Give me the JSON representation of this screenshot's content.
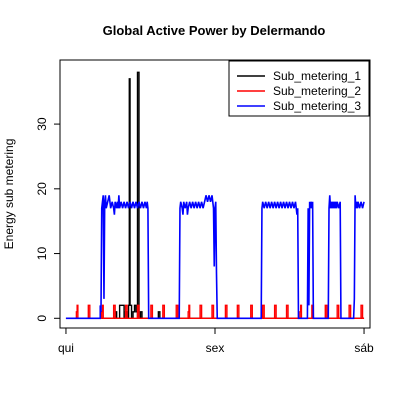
{
  "chart_data": {
    "type": "line",
    "title": "Global Active Power by Delermando",
    "xlabel": "",
    "ylabel": "Energy sub metering",
    "x_ticks": [
      {
        "label": "qui",
        "value": 0
      },
      {
        "label": "sex",
        "value": 1
      },
      {
        "label": "sáb",
        "value": 2
      }
    ],
    "xlim": [
      -0.04,
      2.04
    ],
    "ylim": [
      -1.5,
      39.9
    ],
    "y_ticks": [
      0,
      10,
      20,
      30
    ],
    "grid": false,
    "legend_position": "top-right",
    "series": [
      {
        "name": "Sub_metering_1",
        "color": "#000000",
        "points": [
          [
            0,
            0
          ],
          [
            0.33,
            0
          ],
          [
            0.33,
            1
          ],
          [
            0.34,
            1
          ],
          [
            0.34,
            0
          ],
          [
            0.36,
            0
          ],
          [
            0.36,
            2
          ],
          [
            0.39,
            2
          ],
          [
            0.39,
            0
          ],
          [
            0.4,
            0
          ],
          [
            0.4,
            1
          ],
          [
            0.41,
            1
          ],
          [
            0.41,
            0
          ],
          [
            0.42,
            0
          ],
          [
            0.42,
            2
          ],
          [
            0.425,
            2
          ],
          [
            0.425,
            37
          ],
          [
            0.43,
            37
          ],
          [
            0.43,
            2
          ],
          [
            0.44,
            2
          ],
          [
            0.44,
            0
          ],
          [
            0.45,
            0
          ],
          [
            0.45,
            1
          ],
          [
            0.46,
            1
          ],
          [
            0.46,
            2
          ],
          [
            0.47,
            2
          ],
          [
            0.47,
            1
          ],
          [
            0.48,
            1
          ],
          [
            0.48,
            0
          ],
          [
            0.48,
            0
          ],
          [
            0.48,
            38
          ],
          [
            0.49,
            38
          ],
          [
            0.49,
            0
          ],
          [
            0.5,
            0
          ],
          [
            0.5,
            1
          ],
          [
            0.51,
            1
          ],
          [
            0.51,
            0
          ],
          [
            0.62,
            0
          ],
          [
            0.62,
            1
          ],
          [
            0.63,
            1
          ],
          [
            0.63,
            0
          ],
          [
            2.0,
            0
          ]
        ]
      },
      {
        "name": "Sub_metering_2",
        "color": "#ff0000",
        "points": [
          [
            0,
            0
          ],
          [
            0.07,
            0
          ],
          [
            0.07,
            1
          ],
          [
            0.075,
            1
          ],
          [
            0.075,
            2
          ],
          [
            0.08,
            2
          ],
          [
            0.08,
            0
          ],
          [
            0.15,
            0
          ],
          [
            0.15,
            2
          ],
          [
            0.16,
            2
          ],
          [
            0.16,
            0
          ],
          [
            0.24,
            0
          ],
          [
            0.24,
            1
          ],
          [
            0.245,
            1
          ],
          [
            0.245,
            2
          ],
          [
            0.25,
            2
          ],
          [
            0.25,
            0
          ],
          [
            0.32,
            0
          ],
          [
            0.32,
            2
          ],
          [
            0.33,
            2
          ],
          [
            0.33,
            0
          ],
          [
            0.4,
            0
          ],
          [
            0.4,
            2
          ],
          [
            0.41,
            2
          ],
          [
            0.41,
            0
          ],
          [
            0.48,
            0
          ],
          [
            0.48,
            2
          ],
          [
            0.49,
            2
          ],
          [
            0.49,
            0
          ],
          [
            0.57,
            0
          ],
          [
            0.57,
            2
          ],
          [
            0.58,
            2
          ],
          [
            0.58,
            0
          ],
          [
            0.65,
            0
          ],
          [
            0.65,
            2
          ],
          [
            0.66,
            2
          ],
          [
            0.66,
            0
          ],
          [
            0.74,
            0
          ],
          [
            0.74,
            2
          ],
          [
            0.75,
            2
          ],
          [
            0.75,
            0
          ],
          [
            0.82,
            0
          ],
          [
            0.82,
            1
          ],
          [
            0.825,
            1
          ],
          [
            0.825,
            2
          ],
          [
            0.83,
            2
          ],
          [
            0.83,
            0
          ],
          [
            0.9,
            0
          ],
          [
            0.9,
            2
          ],
          [
            0.91,
            2
          ],
          [
            0.91,
            0
          ],
          [
            0.98,
            0
          ],
          [
            0.98,
            2
          ],
          [
            0.99,
            2
          ],
          [
            0.99,
            0
          ],
          [
            1.07,
            0
          ],
          [
            1.07,
            2
          ],
          [
            1.08,
            2
          ],
          [
            1.08,
            0
          ],
          [
            1.15,
            0
          ],
          [
            1.15,
            2
          ],
          [
            1.16,
            2
          ],
          [
            1.16,
            0
          ],
          [
            1.24,
            0
          ],
          [
            1.24,
            2
          ],
          [
            1.25,
            2
          ],
          [
            1.25,
            0
          ],
          [
            1.32,
            0
          ],
          [
            1.32,
            2
          ],
          [
            1.33,
            2
          ],
          [
            1.33,
            0
          ],
          [
            1.4,
            0
          ],
          [
            1.4,
            2
          ],
          [
            1.41,
            2
          ],
          [
            1.41,
            0
          ],
          [
            1.48,
            0
          ],
          [
            1.48,
            2
          ],
          [
            1.49,
            2
          ],
          [
            1.49,
            0
          ],
          [
            1.57,
            0
          ],
          [
            1.57,
            1
          ],
          [
            1.575,
            1
          ],
          [
            1.575,
            2
          ],
          [
            1.58,
            2
          ],
          [
            1.58,
            0
          ],
          [
            1.65,
            0
          ],
          [
            1.65,
            2
          ],
          [
            1.66,
            2
          ],
          [
            1.66,
            0
          ],
          [
            1.74,
            0
          ],
          [
            1.74,
            2
          ],
          [
            1.75,
            2
          ],
          [
            1.75,
            0
          ],
          [
            1.82,
            0
          ],
          [
            1.82,
            2
          ],
          [
            1.83,
            2
          ],
          [
            1.83,
            0
          ],
          [
            1.9,
            0
          ],
          [
            1.9,
            2
          ],
          [
            1.91,
            2
          ],
          [
            1.91,
            0
          ],
          [
            1.98,
            0
          ],
          [
            1.98,
            2
          ],
          [
            1.99,
            2
          ],
          [
            1.99,
            0
          ],
          [
            2.0,
            0
          ]
        ]
      },
      {
        "name": "Sub_metering_3",
        "color": "#0000ff",
        "points": [
          [
            0,
            0
          ],
          [
            0.23,
            0
          ],
          [
            0.23,
            2
          ],
          [
            0.235,
            1
          ],
          [
            0.24,
            17
          ],
          [
            0.245,
            18
          ],
          [
            0.25,
            19
          ],
          [
            0.255,
            3
          ],
          [
            0.26,
            18
          ],
          [
            0.265,
            19
          ],
          [
            0.27,
            17
          ],
          [
            0.28,
            18
          ],
          [
            0.29,
            19
          ],
          [
            0.3,
            17
          ],
          [
            0.31,
            18
          ],
          [
            0.32,
            17
          ],
          [
            0.325,
            16
          ],
          [
            0.33,
            18
          ],
          [
            0.34,
            17
          ],
          [
            0.345,
            18
          ],
          [
            0.35,
            17
          ],
          [
            0.355,
            19
          ],
          [
            0.36,
            17
          ],
          [
            0.37,
            18
          ],
          [
            0.38,
            17
          ],
          [
            0.39,
            18
          ],
          [
            0.4,
            17
          ],
          [
            0.41,
            18
          ],
          [
            0.42,
            17
          ],
          [
            0.43,
            18
          ],
          [
            0.44,
            17
          ],
          [
            0.45,
            18
          ],
          [
            0.46,
            17
          ],
          [
            0.47,
            18
          ],
          [
            0.48,
            17
          ],
          [
            0.49,
            18
          ],
          [
            0.5,
            17
          ],
          [
            0.51,
            18
          ],
          [
            0.52,
            17
          ],
          [
            0.53,
            18
          ],
          [
            0.54,
            17
          ],
          [
            0.545,
            18
          ],
          [
            0.55,
            17
          ],
          [
            0.555,
            0
          ],
          [
            0.76,
            0
          ],
          [
            0.765,
            17
          ],
          [
            0.77,
            18
          ],
          [
            0.78,
            17
          ],
          [
            0.785,
            16
          ],
          [
            0.79,
            18
          ],
          [
            0.8,
            17
          ],
          [
            0.81,
            18
          ],
          [
            0.815,
            16
          ],
          [
            0.82,
            17
          ],
          [
            0.83,
            18
          ],
          [
            0.84,
            17
          ],
          [
            0.85,
            18
          ],
          [
            0.86,
            17
          ],
          [
            0.87,
            18
          ],
          [
            0.88,
            17
          ],
          [
            0.89,
            18
          ],
          [
            0.9,
            17
          ],
          [
            0.91,
            18
          ],
          [
            0.92,
            17
          ],
          [
            0.93,
            18
          ],
          [
            0.94,
            19
          ],
          [
            0.95,
            18
          ],
          [
            0.96,
            19
          ],
          [
            0.97,
            18
          ],
          [
            0.98,
            19
          ],
          [
            0.985,
            18
          ],
          [
            0.99,
            17
          ],
          [
            0.995,
            8
          ],
          [
            1.0,
            17
          ],
          [
            1.005,
            18
          ],
          [
            1.01,
            7
          ],
          [
            1.015,
            0
          ],
          [
            1.31,
            0
          ],
          [
            1.315,
            17
          ],
          [
            1.32,
            18
          ],
          [
            1.33,
            17
          ],
          [
            1.34,
            18
          ],
          [
            1.35,
            17
          ],
          [
            1.36,
            18
          ],
          [
            1.37,
            17
          ],
          [
            1.38,
            18
          ],
          [
            1.39,
            17
          ],
          [
            1.4,
            18
          ],
          [
            1.41,
            17
          ],
          [
            1.42,
            18
          ],
          [
            1.43,
            17
          ],
          [
            1.44,
            18
          ],
          [
            1.45,
            17
          ],
          [
            1.46,
            18
          ],
          [
            1.47,
            17
          ],
          [
            1.48,
            18
          ],
          [
            1.49,
            17
          ],
          [
            1.5,
            18
          ],
          [
            1.51,
            17
          ],
          [
            1.52,
            18
          ],
          [
            1.53,
            17
          ],
          [
            1.54,
            18
          ],
          [
            1.545,
            17
          ],
          [
            1.55,
            16
          ],
          [
            1.555,
            17
          ],
          [
            1.56,
            0
          ],
          [
            1.62,
            0
          ],
          [
            1.625,
            17
          ],
          [
            1.63,
            2
          ],
          [
            1.635,
            18
          ],
          [
            1.64,
            17
          ],
          [
            1.645,
            18
          ],
          [
            1.65,
            17
          ],
          [
            1.655,
            18
          ],
          [
            1.66,
            0
          ],
          [
            1.76,
            0
          ],
          [
            1.765,
            17
          ],
          [
            1.77,
            19
          ],
          [
            1.775,
            17
          ],
          [
            1.78,
            18
          ],
          [
            1.785,
            17
          ],
          [
            1.79,
            18
          ],
          [
            1.795,
            17
          ],
          [
            1.8,
            18
          ],
          [
            1.805,
            17
          ],
          [
            1.81,
            18
          ],
          [
            1.815,
            17
          ],
          [
            1.82,
            18
          ],
          [
            1.83,
            17
          ],
          [
            1.84,
            18
          ],
          [
            1.845,
            0
          ],
          [
            1.93,
            0
          ],
          [
            1.935,
            3
          ],
          [
            1.94,
            19
          ],
          [
            1.945,
            17
          ],
          [
            1.95,
            18
          ],
          [
            1.955,
            17
          ],
          [
            1.96,
            18
          ],
          [
            1.97,
            17
          ],
          [
            1.98,
            18
          ],
          [
            1.99,
            17
          ],
          [
            2.0,
            18
          ]
        ]
      }
    ]
  }
}
